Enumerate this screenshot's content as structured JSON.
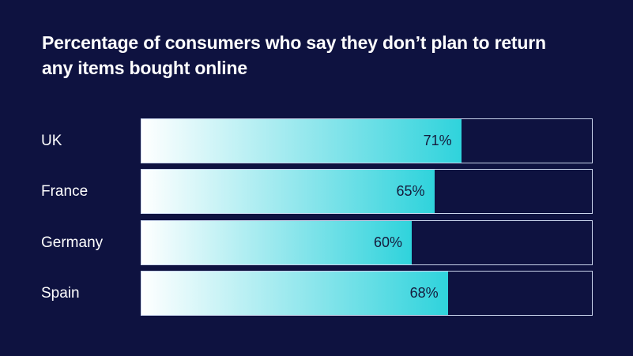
{
  "chart_data": {
    "type": "bar",
    "orientation": "horizontal",
    "title": "Percentage of consumers who say they don’t plan to return any items bought online",
    "categories": [
      "UK",
      "France",
      "Germany",
      "Spain"
    ],
    "values": [
      71,
      65,
      60,
      68
    ],
    "value_labels": [
      "71%",
      "65%",
      "60%",
      "68%"
    ],
    "xlim": [
      0,
      100
    ],
    "unit": "%",
    "grid": false,
    "legend": "none",
    "colors": {
      "background": "#0e1240",
      "bar_start": "#ffffff",
      "bar_end": "#2fd3dc",
      "track_border": "#c9d4ec",
      "text": "#ffffff",
      "value_text": "#151b3c"
    }
  }
}
